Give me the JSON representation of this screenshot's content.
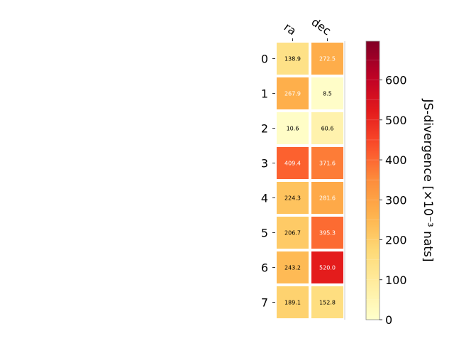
{
  "chart_data": {
    "type": "heatmap",
    "title": "",
    "columns": [
      "ra",
      "dec"
    ],
    "rows": [
      "0",
      "1",
      "2",
      "3",
      "4",
      "5",
      "6",
      "7"
    ],
    "values": [
      [
        138.9,
        272.5
      ],
      [
        267.9,
        8.5
      ],
      [
        10.6,
        60.6
      ],
      [
        409.4,
        371.6
      ],
      [
        224.3,
        281.6
      ],
      [
        206.7,
        395.3
      ],
      [
        243.2,
        520.0
      ],
      [
        189.1,
        152.8
      ]
    ],
    "colorbar": {
      "label": "JS-divergence [×10⁻³ nats]",
      "range": [
        0,
        697
      ],
      "ticks": [
        0,
        100,
        200,
        300,
        400,
        500,
        600
      ],
      "colormap": "YlOrRd"
    },
    "text_color_threshold": 250
  }
}
